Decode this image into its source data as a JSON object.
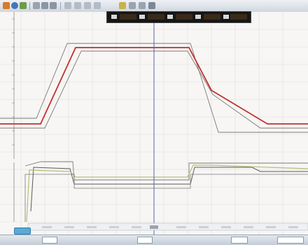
{
  "toolbar": {
    "icons": [
      "open-icon",
      "save-icon",
      "settings-icon",
      "cursor-icon",
      "zoom-in-icon",
      "zoom-out-icon",
      "pan-icon",
      "marker-icon"
    ]
  },
  "readout": {
    "cells": [
      "",
      "",
      "",
      "",
      "",
      ""
    ]
  },
  "colors": {
    "trace_main": "#c0312f",
    "trace_envelope": "#7a7a7a",
    "trace_secondary": "#b8bd7a",
    "cursor": "#5a64a8",
    "grid": "#e0dede",
    "background": "#f7f6f4"
  },
  "cursor": {
    "x_fraction": 0.5
  },
  "statusbar": {
    "fields": [
      "",
      ""
    ]
  }
}
